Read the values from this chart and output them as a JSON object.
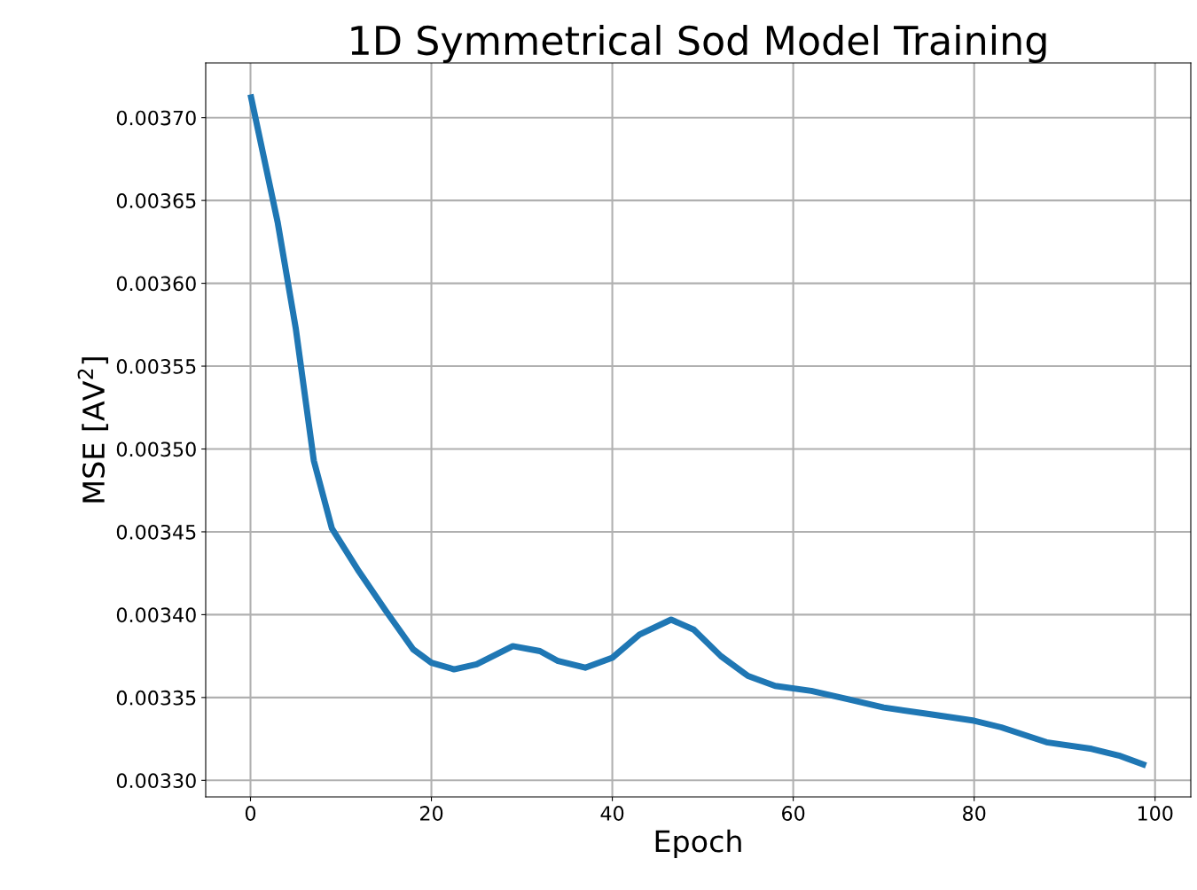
{
  "chart_data": {
    "type": "line",
    "title": "1D Symmetrical Sod Model Training",
    "xlabel": "Epoch",
    "ylabel": "MSE [AV$^{2}$]",
    "x": [
      0,
      3,
      5,
      7,
      9,
      12,
      15,
      18,
      20,
      22.5,
      25,
      29,
      32,
      34,
      37,
      40,
      43,
      46.5,
      49,
      52,
      55,
      58,
      62,
      66,
      70,
      75,
      80,
      83,
      88,
      93,
      96,
      99
    ],
    "series": [
      {
        "color": "#1f77b4",
        "values": [
          0.003714,
          0.003637,
          0.003573,
          0.003493,
          0.003452,
          0.003426,
          0.003402,
          0.003379,
          0.003371,
          0.003367,
          0.00337,
          0.003381,
          0.003378,
          0.003372,
          0.003368,
          0.003374,
          0.003388,
          0.003397,
          0.003391,
          0.003375,
          0.003363,
          0.003357,
          0.003354,
          0.003349,
          0.003344,
          0.00334,
          0.003336,
          0.003332,
          0.003323,
          0.003319,
          0.003315,
          0.003309
        ]
      }
    ],
    "xlim": [
      -4.95,
      103.95
    ],
    "xticks": [
      0,
      20,
      40,
      60,
      80,
      100
    ],
    "ylim": [
      0.00329,
      0.003733
    ],
    "yticks": [
      {
        "value": 0.0033,
        "label": "0.00330"
      },
      {
        "value": 0.00335,
        "label": "0.00335"
      },
      {
        "value": 0.0034,
        "label": "0.00340"
      },
      {
        "value": 0.00345,
        "label": "0.00345"
      },
      {
        "value": 0.0035,
        "label": "0.00350"
      },
      {
        "value": 0.00355,
        "label": "0.00355"
      },
      {
        "value": 0.0036,
        "label": "0.00360"
      },
      {
        "value": 0.00365,
        "label": "0.00365"
      },
      {
        "value": 0.0037,
        "label": "0.00370"
      }
    ],
    "grid": true,
    "line_style": "solid",
    "marker": "none"
  }
}
